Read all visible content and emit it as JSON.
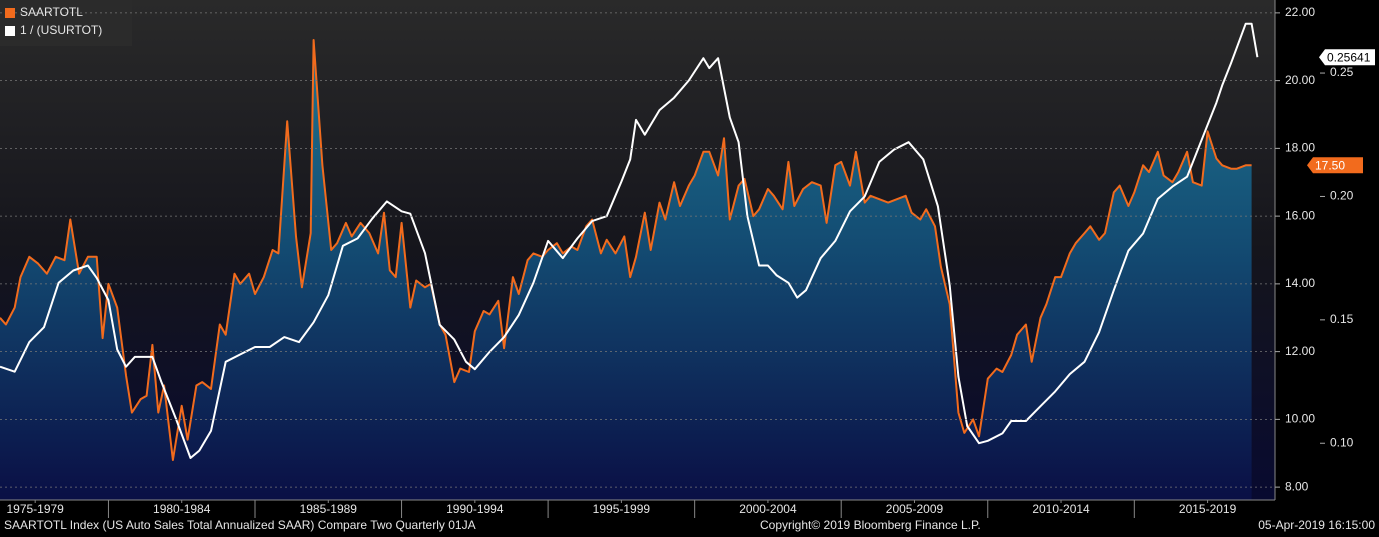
{
  "chart_data": {
    "type": "line",
    "legend": {
      "position": "top-left"
    },
    "footer": {
      "left": "SAARTOTL Index (US Auto Sales Total Annualized SAAR) Compare Two  Quarterly 01JA",
      "center": "Copyright© 2019 Bloomberg Finance L.P.",
      "right": "05-Apr-2019 16:15:00"
    },
    "xlim": [
      1976.3,
      2019.8
    ],
    "xticks": [
      {
        "value": 1977.5,
        "label": "1975-1979"
      },
      {
        "value": 1982.5,
        "label": "1980-1984"
      },
      {
        "value": 1987.5,
        "label": "1985-1989"
      },
      {
        "value": 1992.5,
        "label": "1990-1994"
      },
      {
        "value": 1997.5,
        "label": "1995-1999"
      },
      {
        "value": 2002.5,
        "label": "2000-2004"
      },
      {
        "value": 2007.5,
        "label": "2005-2009"
      },
      {
        "value": 2012.5,
        "label": "2010-2014"
      },
      {
        "value": 2017.5,
        "label": "2015-2019"
      }
    ],
    "ylim": [
      7.62,
      22.38
    ],
    "yticks": [
      {
        "value": 8,
        "label": "8.00"
      },
      {
        "value": 10,
        "label": "10.00"
      },
      {
        "value": 12,
        "label": "12.00"
      },
      {
        "value": 14,
        "label": "14.00"
      },
      {
        "value": 16,
        "label": "16.00"
      },
      {
        "value": 18,
        "label": "18.00"
      },
      {
        "value": 20,
        "label": "20.00"
      },
      {
        "value": 22,
        "label": "22.00"
      }
    ],
    "y2lim": [
      0.077,
      0.2796
    ],
    "y2ticks": [
      {
        "value": 0.1,
        "label": "0.10"
      },
      0.15,
      {
        "value": 0.2,
        "label": "0.20"
      },
      0.25
    ],
    "series": [
      {
        "name": "SAARTOTL",
        "color": "#f26b1d",
        "area": true,
        "end_label": "17.50",
        "x": [
          1976.3,
          1976.5,
          1976.8,
          1977.0,
          1977.3,
          1977.6,
          1977.9,
          1978.2,
          1978.5,
          1978.7,
          1979.0,
          1979.3,
          1979.6,
          1979.8,
          1980.0,
          1980.3,
          1980.6,
          1980.8,
          1981.1,
          1981.3,
          1981.5,
          1981.7,
          1981.9,
          1982.2,
          1982.5,
          1982.7,
          1983.0,
          1983.2,
          1983.5,
          1983.8,
          1984.0,
          1984.3,
          1984.5,
          1984.8,
          1985.0,
          1985.3,
          1985.6,
          1985.8,
          1986.1,
          1986.4,
          1986.6,
          1986.9,
          1987.0,
          1987.3,
          1987.6,
          1987.8,
          1988.1,
          1988.3,
          1988.6,
          1988.9,
          1989.2,
          1989.4,
          1989.6,
          1989.8,
          1990.0,
          1990.3,
          1990.5,
          1990.8,
          1991.0,
          1991.3,
          1991.5,
          1991.8,
          1992.0,
          1992.3,
          1992.5,
          1992.8,
          1993.0,
          1993.3,
          1993.5,
          1993.8,
          1994.0,
          1994.3,
          1994.5,
          1994.8,
          1995.0,
          1995.3,
          1995.5,
          1995.8,
          1996.0,
          1996.3,
          1996.5,
          1996.8,
          1997.0,
          1997.3,
          1997.6,
          1997.8,
          1998.0,
          1998.3,
          1998.5,
          1998.8,
          1999.0,
          1999.3,
          1999.5,
          1999.8,
          2000.0,
          2000.3,
          2000.5,
          2000.8,
          2001.0,
          2001.2,
          2001.5,
          2001.7,
          2002.0,
          2002.2,
          2002.5,
          2002.7,
          2003.0,
          2003.2,
          2003.4,
          2003.7,
          2004.0,
          2004.3,
          2004.5,
          2004.8,
          2005.0,
          2005.3,
          2005.5,
          2005.8,
          2006.0,
          2006.3,
          2006.6,
          2006.9,
          2007.2,
          2007.4,
          2007.7,
          2007.9,
          2008.2,
          2008.4,
          2008.7,
          2009.0,
          2009.2,
          2009.5,
          2009.7,
          2010.0,
          2010.3,
          2010.5,
          2010.8,
          2011.0,
          2011.3,
          2011.5,
          2011.8,
          2012.0,
          2012.3,
          2012.5,
          2012.8,
          2013.0,
          2013.3,
          2013.5,
          2013.8,
          2014.0,
          2014.3,
          2014.5,
          2014.8,
          2015.0,
          2015.3,
          2015.5,
          2015.8,
          2016.0,
          2016.3,
          2016.5,
          2016.8,
          2017.0,
          2017.3,
          2017.5,
          2017.8,
          2018.0,
          2018.3,
          2018.5,
          2018.8,
          2019.0
        ],
        "values": [
          13.0,
          12.8,
          13.3,
          14.2,
          14.8,
          14.6,
          14.3,
          14.8,
          14.7,
          15.9,
          14.3,
          14.8,
          14.8,
          12.4,
          14.0,
          13.3,
          11.3,
          10.2,
          10.6,
          10.7,
          12.2,
          10.2,
          11.0,
          8.8,
          10.4,
          9.4,
          11.0,
          11.1,
          10.9,
          12.8,
          12.5,
          14.3,
          14.0,
          14.3,
          13.7,
          14.2,
          15.0,
          14.9,
          18.8,
          15.4,
          13.9,
          15.5,
          21.2,
          17.5,
          15.0,
          15.2,
          15.8,
          15.4,
          15.8,
          15.5,
          14.9,
          16.1,
          14.4,
          14.2,
          15.8,
          13.3,
          14.1,
          13.9,
          14.0,
          12.8,
          12.5,
          11.1,
          11.5,
          11.4,
          12.6,
          13.2,
          13.1,
          13.5,
          12.1,
          14.2,
          13.7,
          14.7,
          14.9,
          14.8,
          15.0,
          15.2,
          14.9,
          15.1,
          15.0,
          15.7,
          15.9,
          14.9,
          15.3,
          14.9,
          15.4,
          14.2,
          14.8,
          16.1,
          15.0,
          16.4,
          15.9,
          17.0,
          16.3,
          16.9,
          17.2,
          17.9,
          17.9,
          17.2,
          18.3,
          15.9,
          16.9,
          17.1,
          16.0,
          16.2,
          16.8,
          16.6,
          16.2,
          17.6,
          16.3,
          16.8,
          17.0,
          16.9,
          15.8,
          17.5,
          17.6,
          16.9,
          17.9,
          16.4,
          16.6,
          16.5,
          16.4,
          16.5,
          16.6,
          16.1,
          15.9,
          16.2,
          15.7,
          14.5,
          13.4,
          10.2,
          9.6,
          10.0,
          9.5,
          11.2,
          11.5,
          11.4,
          11.9,
          12.5,
          12.8,
          11.7,
          13.0,
          13.4,
          14.2,
          14.2,
          14.9,
          15.2,
          15.5,
          15.7,
          15.3,
          15.5,
          16.7,
          16.9,
          16.3,
          16.7,
          17.5,
          17.3,
          17.9,
          17.2,
          17.0,
          17.3,
          17.9,
          17.0,
          16.9,
          18.5,
          17.7,
          17.5,
          17.4,
          17.4,
          17.5,
          17.5
        ]
      },
      {
        "name": "1 / (USURTOT)",
        "color": "#ffffff",
        "axis": "y2",
        "x": [
          1976.3,
          1976.8,
          1977.3,
          1977.8,
          1978.3,
          1978.8,
          1979.3,
          1979.6,
          1980.0,
          1980.3,
          1980.6,
          1980.9,
          1981.5,
          1981.8,
          1982.3,
          1982.8,
          1983.1,
          1983.5,
          1984.0,
          1984.5,
          1985.0,
          1985.5,
          1986.0,
          1986.5,
          1987.0,
          1987.5,
          1988.0,
          1988.5,
          1989.0,
          1989.5,
          1990.0,
          1990.3,
          1990.8,
          1991.3,
          1991.8,
          1992.2,
          1992.5,
          1993.0,
          1993.5,
          1994.0,
          1994.5,
          1995.0,
          1995.5,
          1996.0,
          1996.5,
          1997.0,
          1997.5,
          1997.8,
          1998.0,
          1998.3,
          1998.8,
          1999.3,
          1999.8,
          2000.3,
          2000.5,
          2000.8,
          2001.2,
          2001.5,
          2001.8,
          2002.2,
          2002.5,
          2002.8,
          2003.2,
          2003.5,
          2003.8,
          2004.3,
          2004.8,
          2005.3,
          2005.8,
          2006.3,
          2006.8,
          2007.3,
          2007.8,
          2008.3,
          2008.7,
          2009.0,
          2009.3,
          2009.7,
          2010.0,
          2010.5,
          2010.8,
          2011.3,
          2011.8,
          2012.3,
          2012.8,
          2013.3,
          2013.8,
          2014.3,
          2014.8,
          2015.3,
          2015.8,
          2016.3,
          2016.8,
          2017.3,
          2017.8,
          2018.0,
          2018.3,
          2018.8,
          2019.0,
          2019.2
        ],
        "values": [
          0.131,
          0.129,
          0.141,
          0.147,
          0.165,
          0.17,
          0.172,
          0.167,
          0.158,
          0.138,
          0.131,
          0.135,
          0.135,
          0.125,
          0.11,
          0.094,
          0.097,
          0.105,
          0.133,
          0.136,
          0.139,
          0.139,
          0.143,
          0.141,
          0.149,
          0.16,
          0.18,
          0.183,
          0.191,
          0.198,
          0.194,
          0.193,
          0.177,
          0.148,
          0.142,
          0.133,
          0.13,
          0.137,
          0.143,
          0.152,
          0.165,
          0.182,
          0.175,
          0.183,
          0.19,
          0.192,
          0.206,
          0.215,
          0.231,
          0.225,
          0.235,
          0.24,
          0.247,
          0.256,
          0.252,
          0.256,
          0.232,
          0.222,
          0.192,
          0.172,
          0.172,
          0.168,
          0.165,
          0.159,
          0.162,
          0.175,
          0.182,
          0.194,
          0.2,
          0.214,
          0.219,
          0.222,
          0.215,
          0.196,
          0.164,
          0.127,
          0.107,
          0.1,
          0.101,
          0.104,
          0.109,
          0.109,
          0.115,
          0.121,
          0.128,
          0.133,
          0.145,
          0.162,
          0.178,
          0.185,
          0.199,
          0.204,
          0.208,
          0.223,
          0.238,
          0.245,
          0.254,
          0.27,
          0.27,
          0.25641
        ]
      }
    ]
  }
}
